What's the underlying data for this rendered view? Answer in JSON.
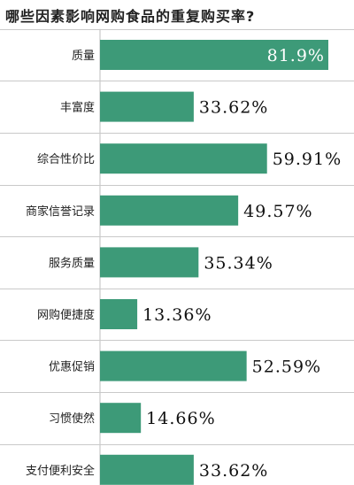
{
  "chart_data": {
    "type": "bar",
    "orientation": "horizontal",
    "title": "哪些因素影响网购食品的重复购买率?",
    "categories": [
      "质量",
      "丰富度",
      "综合性价比",
      "商家信誉记录",
      "服务质量",
      "网购便捷度",
      "优惠促销",
      "习惯使然",
      "支付便利安全"
    ],
    "values": [
      81.9,
      33.62,
      59.91,
      49.57,
      35.34,
      13.36,
      52.59,
      14.66,
      33.62
    ],
    "value_labels": [
      "81.9%",
      "33.62%",
      "59.91%",
      "49.57%",
      "35.34%",
      "13.36%",
      "52.59%",
      "14.66%",
      "33.62%"
    ],
    "unit": "%",
    "xlim": [
      0,
      100
    ],
    "grid": "horizontal separators",
    "legend": "none",
    "bar_color": "#3d9a78"
  }
}
